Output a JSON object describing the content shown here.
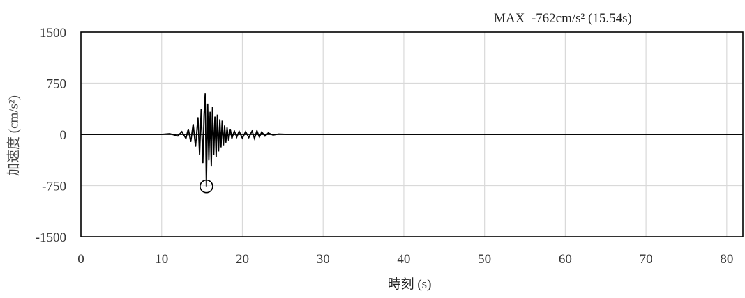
{
  "chart_data": {
    "type": "line",
    "annotation": "MAX  -762cm/s² (15.54s)",
    "xlabel": "時刻 (s)",
    "ylabel": "加速度 (cm/s²)",
    "xlim": [
      0,
      82
    ],
    "ylim": [
      -1500,
      1500
    ],
    "xticks": [
      0,
      10,
      20,
      30,
      40,
      50,
      60,
      70,
      80
    ],
    "yticks": [
      1500,
      750,
      0,
      -750,
      -1500
    ],
    "ytick_labels": [
      "1500",
      "750",
      "0",
      "-750",
      "-1500"
    ],
    "grid": "vertical",
    "max_point": {
      "x": 15.54,
      "y": -762
    },
    "series": [
      {
        "x": [
          0,
          10,
          11,
          12,
          12.5,
          13,
          13.3,
          13.6,
          13.9,
          14.2,
          14.5,
          14.7,
          14.9,
          15.1,
          15.25,
          15.4,
          15.54,
          15.7,
          15.85,
          16.0,
          16.15,
          16.3,
          16.45,
          16.6,
          16.75,
          16.9,
          17.05,
          17.2,
          17.35,
          17.5,
          17.65,
          17.8,
          17.95,
          18.1,
          18.3,
          18.5,
          18.7,
          19.0,
          19.3,
          19.6,
          20.0,
          20.4,
          20.8,
          21.2,
          21.5,
          21.8,
          22.1,
          22.4,
          22.8,
          23.2,
          23.8,
          24.5,
          25.5,
          82
        ],
        "y": [
          0,
          0,
          10,
          -25,
          40,
          -60,
          80,
          -110,
          150,
          -180,
          250,
          -300,
          370,
          -420,
          280,
          600,
          -762,
          450,
          -380,
          330,
          -470,
          400,
          -300,
          260,
          -330,
          290,
          -250,
          220,
          -190,
          200,
          -160,
          130,
          -120,
          100,
          -90,
          80,
          -60,
          50,
          -40,
          45,
          -55,
          40,
          -45,
          50,
          -60,
          55,
          -40,
          35,
          -25,
          20,
          -10,
          5,
          0,
          0
        ]
      }
    ]
  }
}
